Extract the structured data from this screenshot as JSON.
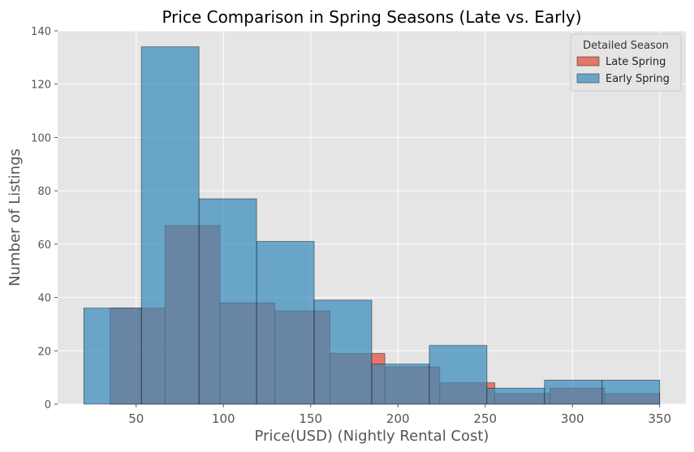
{
  "chart_data": {
    "type": "bar",
    "title": "Price Comparison in Spring Seasons (Late vs. Early)",
    "xlabel": "Price(USD) (Nightly Rental Cost)",
    "ylabel": "Number of Listings",
    "xlim": [
      5,
      365
    ],
    "ylim": [
      0,
      140
    ],
    "x_ticks": [
      50,
      100,
      150,
      200,
      250,
      300,
      350
    ],
    "y_ticks": [
      0,
      20,
      40,
      60,
      80,
      100,
      120,
      140
    ],
    "grid": true,
    "legend": {
      "title": "Detailed Season",
      "position": "top-right"
    },
    "series": [
      {
        "name": "Late Spring",
        "color": "#e24a33",
        "bins": [
          {
            "x0": 35,
            "x1": 66.5,
            "count": 36
          },
          {
            "x0": 66.5,
            "x1": 98,
            "count": 67
          },
          {
            "x0": 98,
            "x1": 129.5,
            "count": 38
          },
          {
            "x0": 129.5,
            "x1": 161,
            "count": 35
          },
          {
            "x0": 161,
            "x1": 192.5,
            "count": 19
          },
          {
            "x0": 192.5,
            "x1": 224,
            "count": 14
          },
          {
            "x0": 224,
            "x1": 255.5,
            "count": 8
          },
          {
            "x0": 255.5,
            "x1": 287,
            "count": 4
          },
          {
            "x0": 287,
            "x1": 318.5,
            "count": 6
          },
          {
            "x0": 318.5,
            "x1": 350,
            "count": 4
          }
        ]
      },
      {
        "name": "Early Spring",
        "color": "#348abd",
        "bins": [
          {
            "x0": 20,
            "x1": 53,
            "count": 36
          },
          {
            "x0": 53,
            "x1": 86,
            "count": 134
          },
          {
            "x0": 86,
            "x1": 119,
            "count": 77
          },
          {
            "x0": 119,
            "x1": 152,
            "count": 61
          },
          {
            "x0": 152,
            "x1": 185,
            "count": 39
          },
          {
            "x0": 185,
            "x1": 218,
            "count": 15
          },
          {
            "x0": 218,
            "x1": 251,
            "count": 22
          },
          {
            "x0": 251,
            "x1": 284,
            "count": 6
          },
          {
            "x0": 284,
            "x1": 317,
            "count": 9
          },
          {
            "x0": 317,
            "x1": 350,
            "count": 9
          }
        ]
      }
    ]
  }
}
